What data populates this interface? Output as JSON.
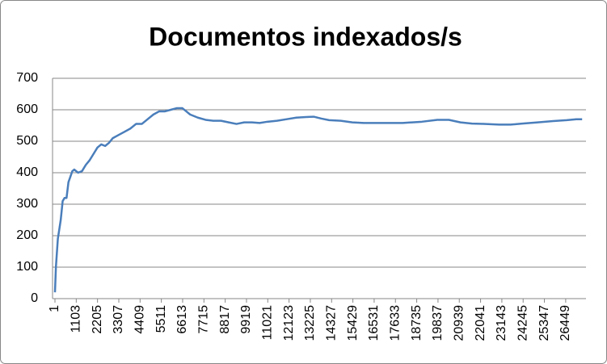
{
  "chart_data": {
    "type": "line",
    "title": "Documentos indexados/s",
    "x": [
      1,
      50,
      150,
      300,
      400,
      500,
      600,
      700,
      900,
      1000,
      1200,
      1400,
      1600,
      1800,
      2000,
      2200,
      2400,
      2600,
      2800,
      3000,
      3300,
      3600,
      3900,
      4200,
      4500,
      4800,
      5100,
      5400,
      5700,
      6000,
      6300,
      6600,
      6800,
      7000,
      7400,
      7800,
      8200,
      8600,
      9000,
      9400,
      9800,
      10200,
      10600,
      11000,
      11500,
      12000,
      12500,
      13000,
      13400,
      13800,
      14200,
      14800,
      15400,
      16000,
      17000,
      18000,
      19000,
      19800,
      20400,
      21000,
      21600,
      22200,
      23000,
      23600,
      24200,
      25000,
      25800,
      26500,
      27000,
      27300
    ],
    "series": [
      {
        "name": "Documentos indexados/s",
        "color": "#4a7ebb",
        "values": [
          20,
          100,
          190,
          250,
          310,
          320,
          320,
          370,
          405,
          410,
          400,
          405,
          425,
          440,
          460,
          480,
          490,
          485,
          495,
          510,
          520,
          530,
          540,
          555,
          555,
          570,
          585,
          595,
          595,
          600,
          605,
          605,
          595,
          585,
          575,
          568,
          565,
          565,
          560,
          555,
          560,
          560,
          558,
          562,
          565,
          570,
          575,
          577,
          578,
          572,
          567,
          565,
          560,
          558,
          558,
          558,
          562,
          568,
          568,
          560,
          556,
          555,
          553,
          553,
          556,
          560,
          564,
          567,
          570,
          570
        ]
      }
    ],
    "xlim": [
      1,
      27500
    ],
    "xticks": [
      1,
      1103,
      2205,
      3307,
      4409,
      5511,
      6613,
      7715,
      8817,
      9919,
      11021,
      12123,
      13225,
      14327,
      15429,
      16531,
      17633,
      18735,
      19837,
      20939,
      22041,
      23143,
      24245,
      25347,
      26449
    ],
    "ylim": [
      0,
      700
    ],
    "yticks": [
      0,
      100,
      200,
      300,
      400,
      500,
      600,
      700
    ],
    "grid": true
  }
}
